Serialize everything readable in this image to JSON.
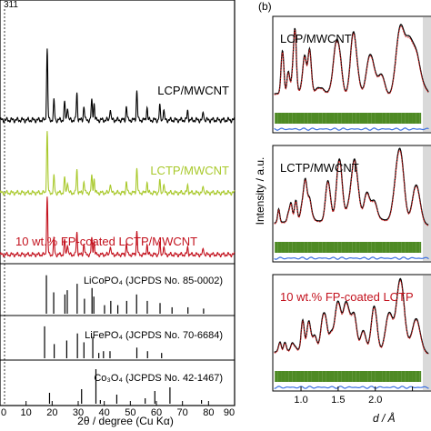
{
  "chart_data": [
    {
      "type": "line",
      "panel_label": "",
      "xlabel": "2θ / degree (Cu Kα)",
      "xlim": [
        0,
        90
      ],
      "x_ticks": [
        "0",
        "10",
        "20",
        "30",
        "40",
        "50",
        "60",
        "70",
        "80",
        "90"
      ],
      "ylabel": "",
      "grid": false,
      "top_peak_label": "311",
      "series": [
        {
          "name": "LCP/MWCNT",
          "color": "#000000",
          "peaks": [
            [
              18.1,
              0.92
            ],
            [
              20.7,
              0.25
            ],
            [
              24.8,
              0.22
            ],
            [
              25.9,
              0.18
            ],
            [
              29.5,
              0.35
            ],
            [
              32.2,
              0.18
            ],
            [
              35.2,
              0.25
            ],
            [
              36.1,
              0.22
            ],
            [
              42.3,
              0.15
            ],
            [
              48.5,
              0.18
            ],
            [
              52.5,
              0.38
            ],
            [
              56.4,
              0.17
            ],
            [
              61.3,
              0.18
            ],
            [
              62.8,
              0.13
            ],
            [
              72.0,
              0.12
            ],
            [
              78.0,
              0.1
            ]
          ]
        },
        {
          "name": "LCTP/MWCNT",
          "color": "#a9c92c",
          "peaks": [
            [
              18.1,
              0.9
            ],
            [
              20.7,
              0.24
            ],
            [
              24.8,
              0.21
            ],
            [
              25.9,
              0.17
            ],
            [
              29.5,
              0.34
            ],
            [
              32.2,
              0.17
            ],
            [
              35.2,
              0.24
            ],
            [
              36.1,
              0.21
            ],
            [
              42.3,
              0.14
            ],
            [
              48.5,
              0.17
            ],
            [
              52.5,
              0.36
            ],
            [
              56.4,
              0.16
            ],
            [
              61.3,
              0.17
            ],
            [
              62.8,
              0.12
            ],
            [
              72.0,
              0.11
            ],
            [
              78.0,
              0.09
            ]
          ]
        },
        {
          "name": "10 wt.% FP-coated LCTP/MWCNT",
          "color": "#c3121e",
          "peaks": [
            [
              18.1,
              0.88
            ],
            [
              20.7,
              0.24
            ],
            [
              24.8,
              0.21
            ],
            [
              25.9,
              0.17
            ],
            [
              29.5,
              0.34
            ],
            [
              32.2,
              0.17
            ],
            [
              35.2,
              0.24
            ],
            [
              36.1,
              0.21
            ],
            [
              42.3,
              0.14
            ],
            [
              48.5,
              0.17
            ],
            [
              52.5,
              0.36
            ],
            [
              56.4,
              0.16
            ],
            [
              61.3,
              0.17
            ],
            [
              62.8,
              0.12
            ],
            [
              72.0,
              0.11
            ],
            [
              78.0,
              0.09
            ]
          ]
        }
      ],
      "references": [
        {
          "text": "LiCoPO₄ (JCPDS No. 85-0002)",
          "sticks": [
            [
              17.8,
              0.9
            ],
            [
              20.6,
              0.5
            ],
            [
              24.9,
              0.45
            ],
            [
              25.8,
              0.55
            ],
            [
              29.6,
              0.7
            ],
            [
              32.4,
              0.35
            ],
            [
              35.3,
              0.6
            ],
            [
              36.0,
              0.4
            ],
            [
              40.1,
              0.2
            ],
            [
              42.5,
              0.3
            ],
            [
              45.2,
              0.2
            ],
            [
              48.6,
              0.3
            ],
            [
              52.4,
              0.45
            ],
            [
              56.5,
              0.3
            ],
            [
              61.4,
              0.25
            ],
            [
              66.0,
              0.15
            ],
            [
              72.1,
              0.15
            ],
            [
              78.1,
              0.12
            ]
          ]
        },
        {
          "text": "LiFePO₄ (JCPDS No. 70-6684)",
          "sticks": [
            [
              17.1,
              0.9
            ],
            [
              20.8,
              0.4
            ],
            [
              25.6,
              0.5
            ],
            [
              29.7,
              0.7
            ],
            [
              32.2,
              0.45
            ],
            [
              35.6,
              0.6
            ],
            [
              37.9,
              0.15
            ],
            [
              39.7,
              0.2
            ],
            [
              42.2,
              0.2
            ],
            [
              52.5,
              0.3
            ],
            [
              56.6,
              0.2
            ],
            [
              62.0,
              0.15
            ]
          ]
        },
        {
          "text": "Co₃O₄ (JCPDS No. 42-1467)",
          "sticks": [
            [
              19.0,
              0.3
            ],
            [
              31.3,
              0.4
            ],
            [
              36.8,
              0.95
            ],
            [
              38.5,
              0.1
            ],
            [
              44.8,
              0.25
            ],
            [
              55.7,
              0.15
            ],
            [
              59.4,
              0.35
            ],
            [
              65.2,
              0.45
            ],
            [
              77.3,
              0.1
            ]
          ]
        }
      ]
    },
    {
      "type": "line",
      "panel_label": "(b)",
      "xlabel": "d / Å",
      "x_ticks": [
        "1.0",
        "1.5",
        "2.0",
        "2.5"
      ],
      "ylabel": "Intensity / a.u.",
      "grid": false,
      "series": [
        {
          "name": "LCP/MWCNT",
          "observed_color": "#000000",
          "calculated_color": "#d62020",
          "tick_color": "#4e8a24",
          "difference_color": "#3b6fe0"
        },
        {
          "name": "LCTP/MWCNT",
          "observed_color": "#000000",
          "calculated_color": "#d62020",
          "tick_color": "#4e8a24",
          "difference_color": "#3b6fe0"
        },
        {
          "name": "10 wt.% FP-coated LCTP",
          "observed_color": "#000000",
          "calculated_color": "#d62020",
          "tick_color": "#4e8a24",
          "difference_color": "#3b6fe0"
        }
      ]
    }
  ]
}
